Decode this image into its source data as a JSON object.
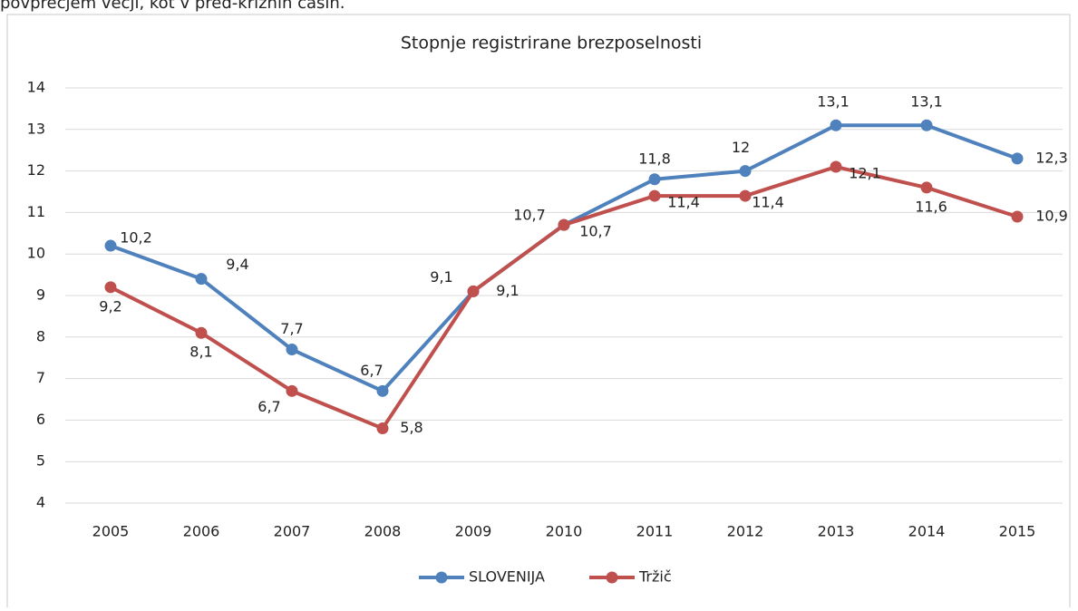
{
  "header_text": "povprečjem večji, kot v pred-kriznih časih.",
  "chart_data": {
    "type": "line",
    "title": "Stopnje registrirane brezposelnosti",
    "categories": [
      "2005",
      "2006",
      "2007",
      "2008",
      "2009",
      "2010",
      "2011",
      "2012",
      "2013",
      "2014",
      "2015"
    ],
    "series": [
      {
        "name": "SLOVENIJA",
        "color": "#4f81bd",
        "values": [
          10.2,
          9.4,
          7.7,
          6.7,
          9.1,
          10.7,
          11.8,
          12,
          13.1,
          13.1,
          12.3
        ],
        "value_labels": [
          "10,2",
          "9,4",
          "7,7",
          "6,7",
          "9,1",
          "10,7",
          "11,8",
          "12",
          "13,1",
          "13,1",
          "12,3"
        ]
      },
      {
        "name": "Tržič",
        "color": "#c0504d",
        "values": [
          9.2,
          8.1,
          6.7,
          5.8,
          9.1,
          10.7,
          11.4,
          11.4,
          12.1,
          11.6,
          10.9
        ],
        "value_labels": [
          "9,2",
          "8,1",
          "6,7",
          "5,8",
          "9,1",
          "10,7",
          "11,4",
          "11,4",
          "12,1",
          "11,6",
          "10,9"
        ]
      }
    ],
    "ylim": [
      4,
      14
    ],
    "yticks": [
      4,
      5,
      6,
      7,
      8,
      9,
      10,
      11,
      12,
      13,
      14
    ],
    "grid": true,
    "legend": "bottom"
  }
}
